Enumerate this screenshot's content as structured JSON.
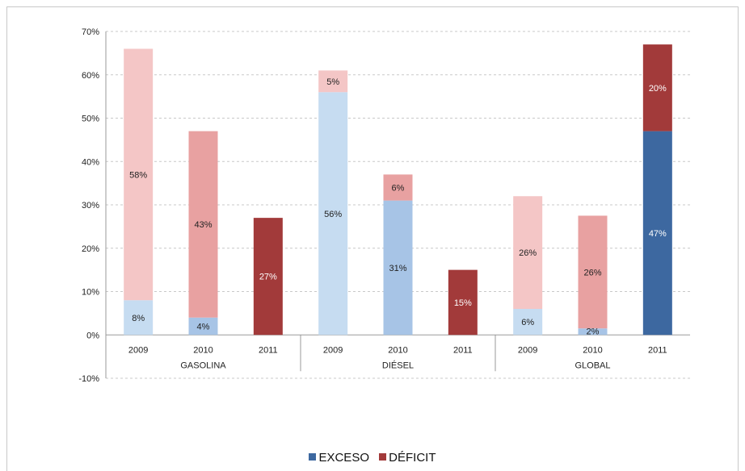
{
  "chart_data": {
    "type": "bar",
    "stacked": true,
    "y_axis": {
      "min": -10,
      "max": 70,
      "step": 10,
      "tick_suffix": "%"
    },
    "groups": [
      {
        "label": "GASOLINA",
        "years": [
          "2009",
          "2010",
          "2011"
        ]
      },
      {
        "label": "DIÉSEL",
        "years": [
          "2009",
          "2010",
          "2011"
        ]
      },
      {
        "label": "GLOBAL",
        "years": [
          "2009",
          "2010",
          "2011"
        ]
      }
    ],
    "series": [
      {
        "name": "EXCESO",
        "color": "#3d68a0"
      },
      {
        "name": "DÉFICIT",
        "color": "#a23a3a"
      }
    ],
    "bars": [
      {
        "group": "GASOLINA",
        "year": "2009",
        "exceso": 8,
        "exceso_label": "8%",
        "deficit": 58,
        "deficit_label": "58%",
        "exceso_color": "#c6dcf1",
        "deficit_color": "#f4c6c6"
      },
      {
        "group": "GASOLINA",
        "year": "2010",
        "exceso": 4,
        "exceso_label": "4%",
        "deficit": 43,
        "deficit_label": "43%",
        "exceso_color": "#a7c4e6",
        "deficit_color": "#e8a1a1"
      },
      {
        "group": "GASOLINA",
        "year": "2011",
        "exceso": 0,
        "exceso_label": "",
        "deficit": 27,
        "deficit_label": "27%",
        "exceso_color": "#3d68a0",
        "deficit_color": "#a23a3a"
      },
      {
        "group": "DIÉSEL",
        "year": "2009",
        "exceso": 56,
        "exceso_label": "56%",
        "deficit": 5,
        "deficit_label": "5%",
        "exceso_color": "#c6dcf1",
        "deficit_color": "#f4c6c6"
      },
      {
        "group": "DIÉSEL",
        "year": "2010",
        "exceso": 31,
        "exceso_label": "31%",
        "deficit": 6,
        "deficit_label": "6%",
        "exceso_color": "#a7c4e6",
        "deficit_color": "#e8a1a1"
      },
      {
        "group": "DIÉSEL",
        "year": "2011",
        "exceso": 0,
        "exceso_label": "",
        "deficit": 15,
        "deficit_label": "15%",
        "exceso_color": "#3d68a0",
        "deficit_color": "#a23a3a"
      },
      {
        "group": "GLOBAL",
        "year": "2009",
        "exceso": 6,
        "exceso_label": "6%",
        "deficit": 26,
        "deficit_label": "26%",
        "exceso_color": "#c6dcf1",
        "deficit_color": "#f4c6c6"
      },
      {
        "group": "GLOBAL",
        "year": "2010",
        "exceso": 1.5,
        "exceso_label": "2%",
        "deficit": 26,
        "deficit_label": "26%",
        "exceso_color": "#a7c4e6",
        "deficit_color": "#e8a1a1"
      },
      {
        "group": "GLOBAL",
        "year": "2011",
        "exceso": 47,
        "exceso_label": "47%",
        "deficit": 20,
        "deficit_label": "20%",
        "exceso_color": "#3d68a0",
        "deficit_color": "#a23a3a"
      }
    ],
    "grid": "horizontal-dashed",
    "legend_position": "bottom-center"
  }
}
